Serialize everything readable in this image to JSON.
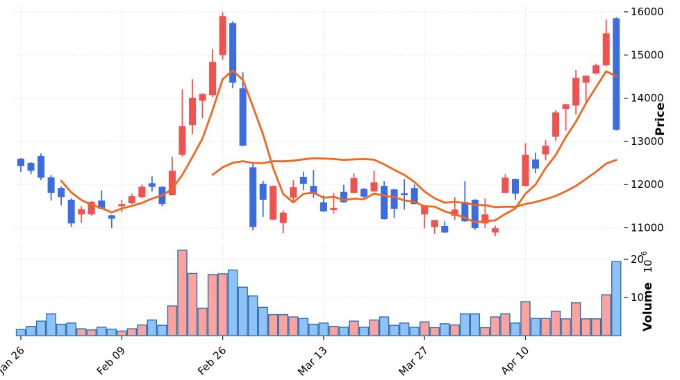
{
  "chart_data": {
    "type": "candlestick",
    "panels": [
      "price",
      "volume"
    ],
    "ylabel_price": "Price",
    "ylabel_volume": "Volume",
    "volume_multiplier_base": "10",
    "volume_multiplier_exp": "6",
    "price_axis": {
      "ticks": [
        11000,
        12000,
        13000,
        14000,
        15000,
        16000
      ],
      "range": [
        10700,
        16100
      ],
      "side": "right"
    },
    "volume_axis": {
      "ticks_millions": [
        10,
        20
      ],
      "range_millions": [
        0,
        24
      ],
      "side": "right"
    },
    "x_axis": {
      "tick_labels": [
        "Jan 26",
        "Feb 09",
        "Feb 26",
        "Mar 13",
        "Mar 27",
        "Apr 10"
      ],
      "tick_indices": [
        0,
        10,
        20,
        30,
        40,
        50
      ],
      "label_rotation_deg": 45
    },
    "mav_windows": [
      5,
      20
    ],
    "num_days": 60,
    "up_color_meaning": "close >= open is red, close < open is blue",
    "ohlc": [
      [
        12600,
        12620,
        12290,
        12430
      ],
      [
        12500,
        12520,
        12240,
        12320
      ],
      [
        12660,
        12720,
        12100,
        12160
      ],
      [
        12170,
        12220,
        11630,
        11810
      ],
      [
        11920,
        11960,
        11520,
        11710
      ],
      [
        11650,
        11680,
        11020,
        11100
      ],
      [
        11310,
        11500,
        11120,
        11430
      ],
      [
        11310,
        11620,
        11280,
        11600
      ],
      [
        11630,
        11870,
        11420,
        11440
      ],
      [
        11290,
        11300,
        10990,
        11210
      ],
      [
        11500,
        11650,
        11360,
        11550
      ],
      [
        11570,
        11790,
        11550,
        11730
      ],
      [
        11710,
        12000,
        11680,
        11950
      ],
      [
        12030,
        12190,
        11840,
        11950
      ],
      [
        11950,
        11960,
        11500,
        11550
      ],
      [
        11760,
        12640,
        11750,
        12320
      ],
      [
        12690,
        14200,
        12650,
        13350
      ],
      [
        13380,
        14440,
        13170,
        14010
      ],
      [
        13940,
        14110,
        13540,
        14100
      ],
      [
        14070,
        15130,
        14020,
        14840
      ],
      [
        15000,
        15990,
        14890,
        15900
      ],
      [
        15740,
        15780,
        14230,
        14360
      ],
      [
        14230,
        14600,
        12890,
        12900
      ],
      [
        12400,
        12500,
        10940,
        11020
      ],
      [
        12020,
        12090,
        11250,
        11650
      ],
      [
        11190,
        11980,
        11180,
        11970
      ],
      [
        11110,
        11400,
        10870,
        11350
      ],
      [
        11700,
        12100,
        11570,
        11940
      ],
      [
        12180,
        12300,
        11870,
        12020
      ],
      [
        11970,
        12340,
        11700,
        11780
      ],
      [
        11590,
        11750,
        11370,
        11380
      ],
      [
        11410,
        11810,
        11330,
        11460
      ],
      [
        11830,
        11990,
        11580,
        11590
      ],
      [
        11810,
        12260,
        11800,
        12150
      ],
      [
        11900,
        11920,
        11690,
        11720
      ],
      [
        11840,
        12320,
        11830,
        12050
      ],
      [
        11970,
        12080,
        11190,
        11200
      ],
      [
        11890,
        11900,
        11230,
        11440
      ],
      [
        11800,
        12130,
        11420,
        11760
      ],
      [
        11920,
        12000,
        11540,
        11550
      ],
      [
        11310,
        11530,
        10990,
        11520
      ],
      [
        11020,
        11180,
        10860,
        11180
      ],
      [
        11040,
        11150,
        10880,
        10890
      ],
      [
        11280,
        11710,
        11180,
        11420
      ],
      [
        11600,
        12080,
        11140,
        11150
      ],
      [
        11650,
        11660,
        10950,
        10990
      ],
      [
        11100,
        11680,
        10990,
        11310
      ],
      [
        10890,
        11050,
        10810,
        10990
      ],
      [
        11810,
        12240,
        11800,
        12160
      ],
      [
        12130,
        12140,
        11650,
        11790
      ],
      [
        11970,
        12960,
        11960,
        12690
      ],
      [
        12580,
        12740,
        12260,
        12370
      ],
      [
        12700,
        13030,
        12560,
        12900
      ],
      [
        13110,
        13720,
        13010,
        13670
      ],
      [
        13750,
        13870,
        13250,
        13860
      ],
      [
        13830,
        14650,
        13620,
        14470
      ],
      [
        14360,
        14530,
        13910,
        14520
      ],
      [
        14570,
        14800,
        14550,
        14760
      ],
      [
        14760,
        15820,
        14740,
        15500
      ],
      [
        15850,
        15870,
        13250,
        13270
      ]
    ],
    "volume_millions": [
      1.6,
      2.4,
      3.8,
      5.7,
      3.0,
      3.3,
      1.8,
      1.5,
      2.2,
      1.7,
      1.2,
      1.8,
      2.8,
      4.1,
      2.7,
      7.8,
      22.4,
      16.3,
      7.2,
      16.0,
      16.2,
      17.2,
      12.7,
      10.4,
      7.4,
      5.5,
      5.5,
      4.9,
      4.5,
      3.0,
      3.3,
      2.4,
      2.2,
      3.8,
      2.2,
      4.1,
      4.9,
      2.7,
      3.3,
      2.2,
      3.6,
      2.1,
      3.1,
      2.8,
      5.7,
      5.7,
      2.1,
      4.9,
      5.7,
      3.3,
      8.9,
      4.5,
      4.5,
      6.4,
      4.4,
      8.6,
      4.4,
      4.4,
      10.7,
      19.4
    ],
    "colors": {
      "candle_up": "#ef5350",
      "candle_down": "#3d6ce0",
      "ma_line": "#f2661d",
      "volume_up_fill": "#fba39c",
      "volume_down_fill": "#8fc3f7",
      "volume_edge": "#2e6fb0",
      "grid": "#d9dade",
      "tick_mark": "#262626",
      "background": "#ffffff"
    }
  }
}
